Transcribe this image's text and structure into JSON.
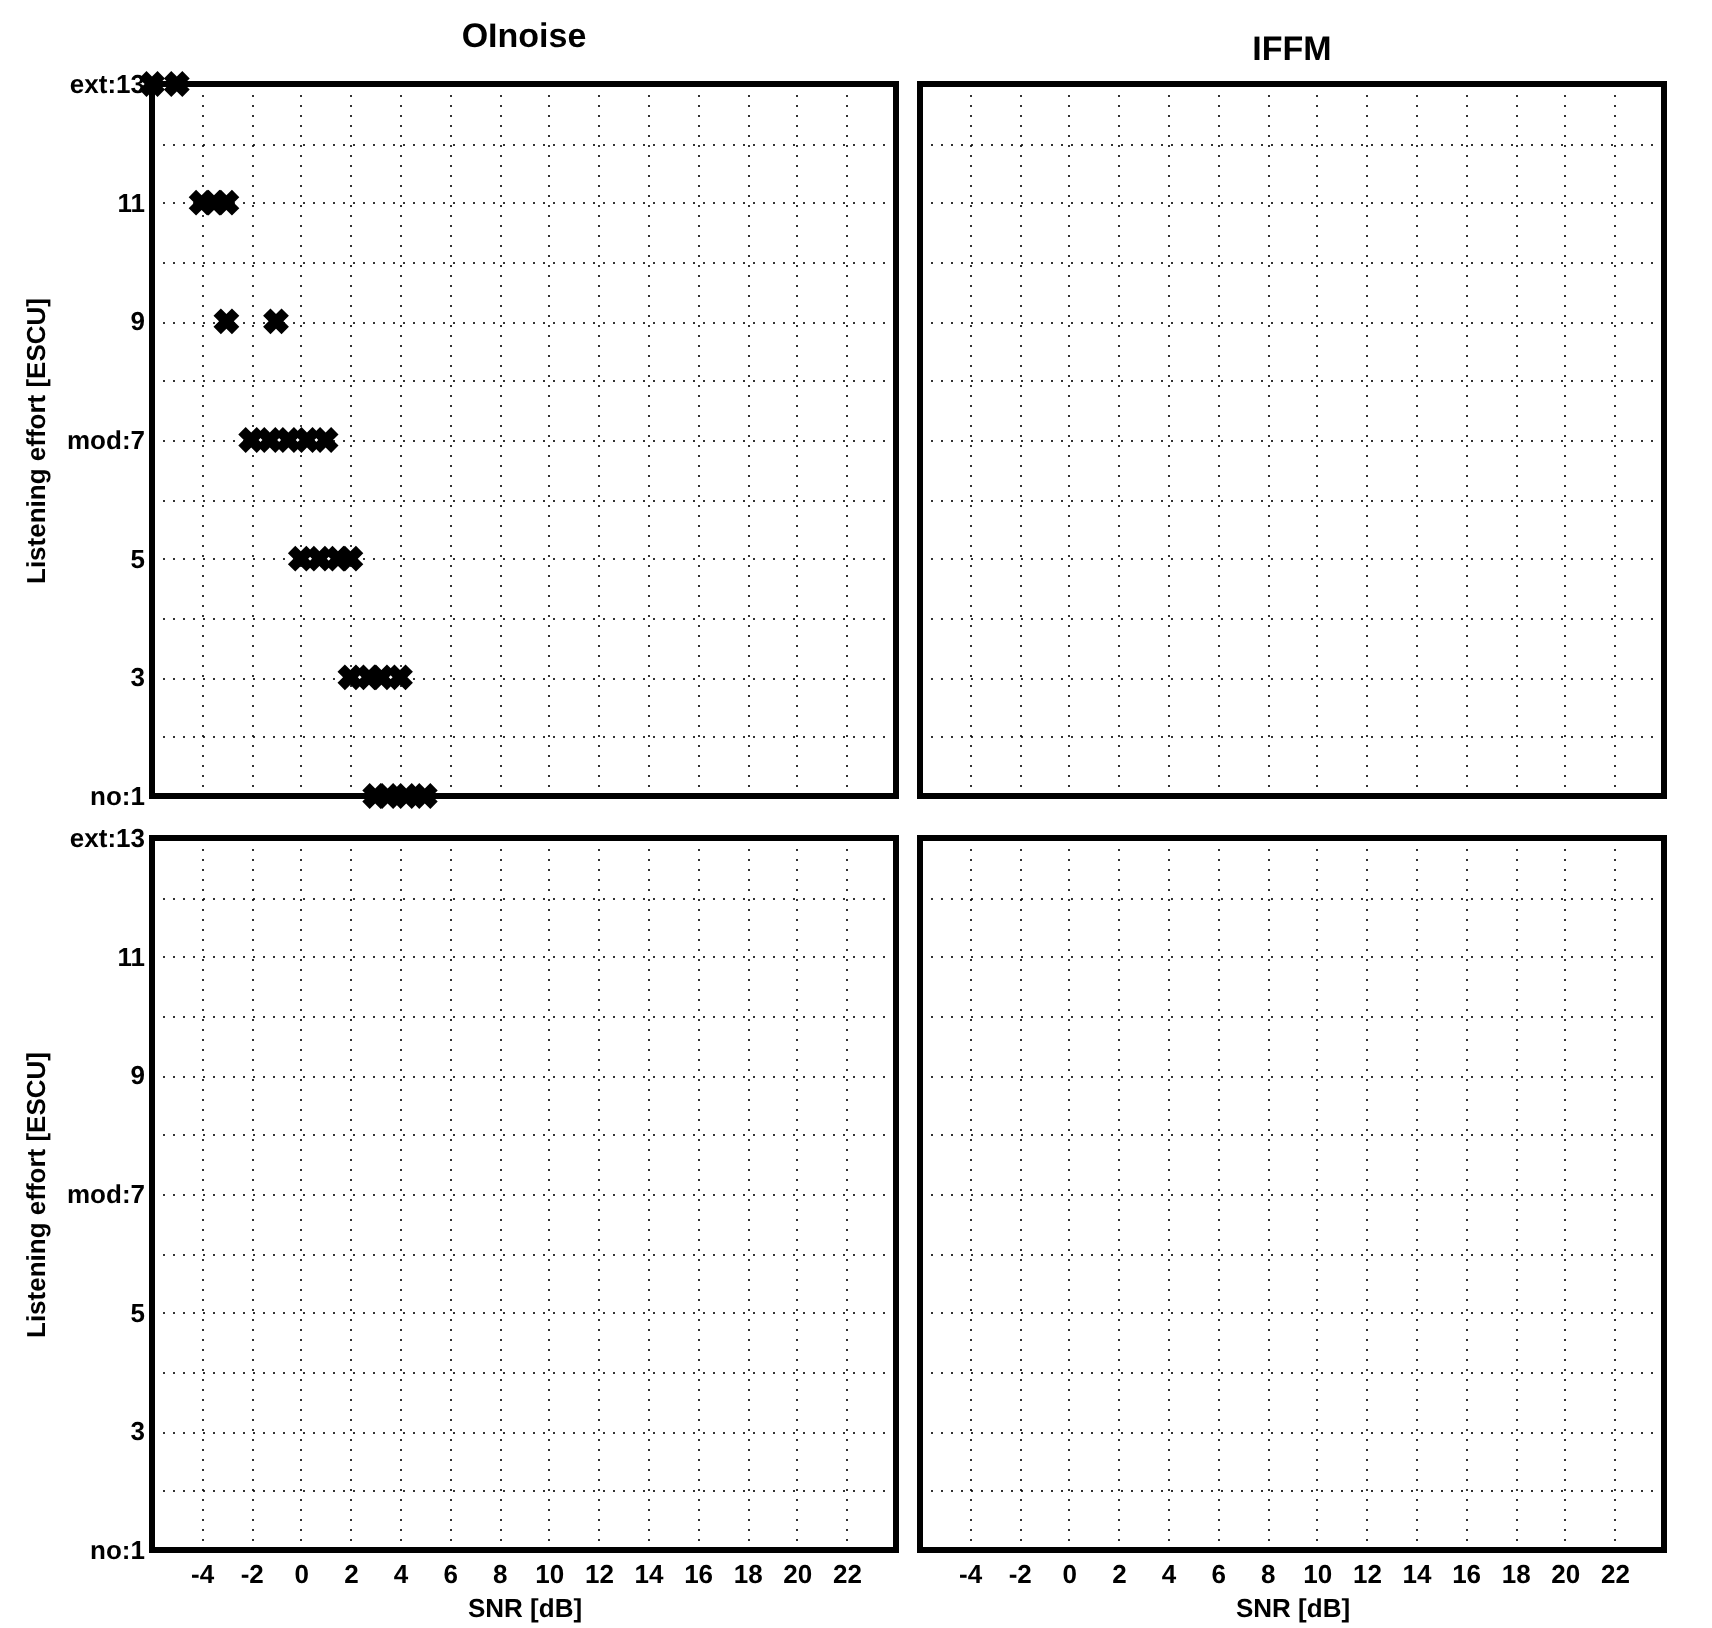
{
  "chart_data": [
    {
      "type": "scatter",
      "title": "OInoise",
      "ylabel": "Listening effort [ESCU]",
      "tick_labels": "y",
      "marker": "cross",
      "grid": true,
      "xlim": [
        -6,
        24
      ],
      "xticks": [
        -4,
        -2,
        0,
        2,
        4,
        6,
        8,
        10,
        12,
        14,
        16,
        18,
        20,
        22
      ],
      "ylim": [
        1,
        13
      ],
      "yticks": [
        {
          "value": 1,
          "label": "no:1"
        },
        {
          "value": 2,
          "label": null
        },
        3,
        {
          "value": 4,
          "label": null
        },
        5,
        {
          "value": 6,
          "label": null
        },
        {
          "value": 7,
          "label": "mod:7"
        },
        {
          "value": 8,
          "label": null
        },
        9,
        {
          "value": 10,
          "label": null
        },
        11,
        {
          "value": 12,
          "label": null
        },
        {
          "value": 13,
          "label": "ext:13"
        }
      ],
      "series": [
        {
          "color": "#000000",
          "x": [
            -6,
            -5,
            -4,
            -3.5,
            -3,
            -3,
            -1,
            -2,
            -1.25,
            -0.5,
            0.25,
            1,
            0,
            0.75,
            1.5,
            2,
            2,
            2.75,
            3.25,
            4,
            3,
            3.5,
            4.25,
            5
          ],
          "values": [
            13,
            13,
            11,
            11,
            11,
            9,
            9,
            7,
            7,
            7,
            7,
            7,
            5,
            5,
            5,
            5,
            3,
            3,
            3,
            3,
            1,
            1,
            1,
            1
          ]
        }
      ]
    },
    {
      "type": "scatter",
      "title": "IFFM",
      "tick_labels": false,
      "grid": true,
      "xlim": [
        -6,
        24
      ],
      "xticks": [
        -4,
        -2,
        0,
        2,
        4,
        6,
        8,
        10,
        12,
        14,
        16,
        18,
        20,
        22
      ],
      "ylim": [
        1,
        13
      ],
      "yticks": [
        1,
        2,
        3,
        4,
        5,
        6,
        7,
        8,
        9,
        10,
        11,
        12,
        13
      ]
    },
    {
      "type": "scatter",
      "xlabel": "SNR [dB]",
      "ylabel": "Listening effort [ESCU]",
      "grid": true,
      "xlim": [
        -6,
        24
      ],
      "xticks": [
        -4,
        -2,
        0,
        2,
        4,
        6,
        8,
        10,
        12,
        14,
        16,
        18,
        20,
        22
      ],
      "ylim": [
        1,
        13
      ],
      "yticks": [
        {
          "value": 1,
          "label": "no:1"
        },
        {
          "value": 2,
          "label": null
        },
        3,
        {
          "value": 4,
          "label": null
        },
        5,
        {
          "value": 6,
          "label": null
        },
        {
          "value": 7,
          "label": "mod:7"
        },
        {
          "value": 8,
          "label": null
        },
        9,
        {
          "value": 10,
          "label": null
        },
        11,
        {
          "value": 12,
          "label": null
        },
        {
          "value": 13,
          "label": "ext:13"
        }
      ]
    },
    {
      "type": "scatter",
      "xlabel": "SNR [dB]",
      "tick_labels": "x",
      "grid": true,
      "xlim": [
        -6,
        24
      ],
      "xticks": [
        -4,
        -2,
        0,
        2,
        4,
        6,
        8,
        10,
        12,
        14,
        16,
        18,
        20,
        22
      ],
      "ylim": [
        1,
        13
      ],
      "yticks": [
        1,
        2,
        3,
        4,
        5,
        6,
        7,
        8,
        9,
        10,
        11,
        12,
        13
      ]
    }
  ]
}
